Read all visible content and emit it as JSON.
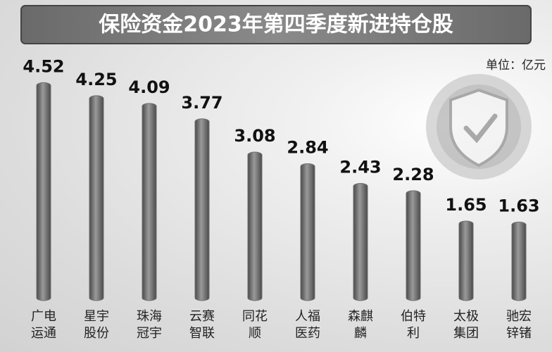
{
  "chart_data": {
    "type": "bar",
    "title": "保险资金2023年第四季度新进持仓股",
    "unit_label": "单位：亿元",
    "categories": [
      "广电运通",
      "星宇股份",
      "珠海冠宇",
      "云赛智联",
      "同花顺",
      "人福医药",
      "森麒麟",
      "伯特利",
      "太极集团",
      "驰宏锌锗"
    ],
    "values": [
      4.52,
      4.25,
      4.09,
      3.77,
      3.08,
      2.84,
      2.43,
      2.28,
      1.65,
      1.63
    ],
    "color": "#6e6e6e"
  }
}
